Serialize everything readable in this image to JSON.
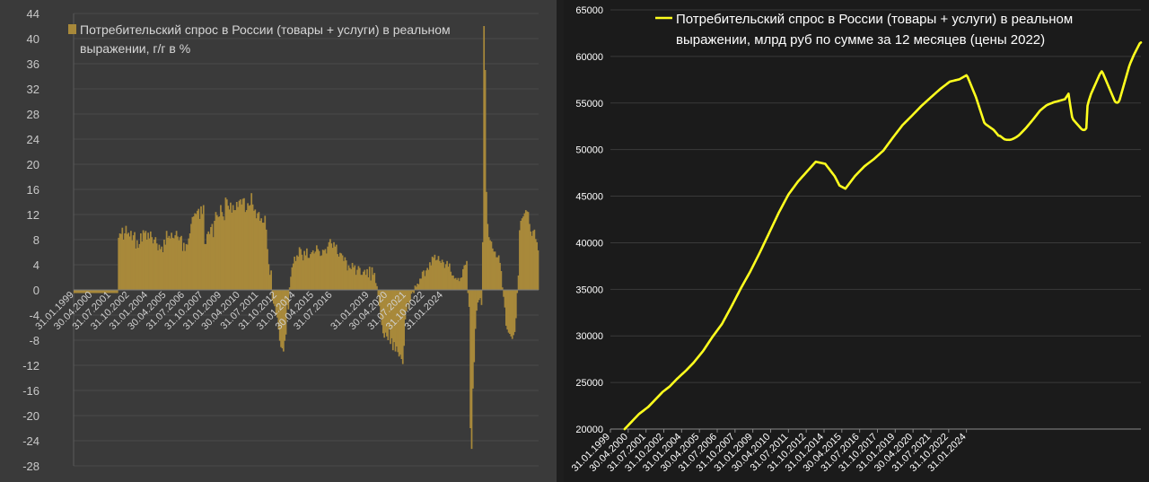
{
  "chart_data": [
    {
      "type": "bar",
      "legend": [
        "Потребительский спрос в России (товары + услуги) в реальном",
        "выражении, г/г в %"
      ],
      "color": "#a8893a",
      "ylim": [
        -28,
        44
      ],
      "yticks": [
        -28,
        -24,
        -20,
        -16,
        -12,
        -8,
        -4,
        0,
        4,
        8,
        12,
        16,
        20,
        24,
        28,
        32,
        36,
        40,
        44
      ],
      "grid": true,
      "xtick_labels": [
        "31.01.1999",
        "30.04.2000",
        "31.07.2001",
        "31.10.2002",
        "31.01.2004",
        "30.04.2005",
        "31.07.2006",
        "31.10.2007",
        "31.01.2009",
        "30.04.2010",
        "31.07.2011",
        "31.10.2012",
        "31.01.2014",
        "30.04.2015",
        "31.07.2016",
        "31.01.2019",
        "30.04.2020",
        "31.07.2021",
        "31.10.2022",
        "31.01.2024"
      ],
      "x_start": "1999-01",
      "frequency": "monthly",
      "values": [
        -0.5,
        -0.5,
        -0.5,
        -0.5,
        -0.5,
        -0.5,
        -0.5,
        -0.5,
        -0.5,
        -0.5,
        -0.5,
        -0.5,
        -0.5,
        -0.5,
        -0.5,
        -0.5,
        -0.5,
        -0.5,
        -0.5,
        -0.5,
        -0.5,
        -0.5,
        -0.5,
        -0.5,
        -0.5,
        -0.5,
        -0.5,
        -0.5,
        -0.5,
        -0.5,
        -0.5,
        -0.5,
        -0.5,
        -0.5,
        -0.5,
        -0.5,
        8.3,
        9.0,
        8.9,
        9.9,
        8.0,
        9.0,
        10.2,
        8.9,
        9.1,
        8.5,
        9.4,
        7.9,
        8.7,
        9.2,
        6.6,
        7.9,
        6.7,
        7.3,
        9.0,
        7.7,
        9.5,
        9.1,
        9.4,
        8.0,
        9.1,
        8.2,
        9.3,
        8.4,
        7.4,
        8.0,
        8.4,
        7.4,
        6.3,
        7.2,
        6.5,
        6.9,
        6.0,
        8.0,
        7.2,
        9.4,
        8.3,
        8.6,
        8.2,
        9.1,
        8.3,
        8.2,
        8.7,
        9.4,
        8.5,
        7.9,
        8.4,
        8.6,
        6.2,
        7.5,
        6.2,
        7.3,
        7.2,
        8.2,
        9.0,
        10.5,
        11.6,
        11.7,
        12.2,
        12.1,
        12.6,
        12.9,
        11.3,
        13.3,
        12.1,
        13.5,
        7.3,
        7.3,
        8.9,
        9.3,
        8.9,
        10.0,
        10.5,
        8.4,
        11.0,
        12.4,
        11.9,
        11.6,
        11.7,
        13.5,
        12.4,
        11.7,
        11.1,
        14.7,
        14.4,
        13.4,
        12.8,
        13.9,
        12.3,
        13.5,
        12.7,
        12.7,
        14.0,
        13.2,
        14.2,
        14.4,
        13.6,
        14.5,
        14.6,
        12.4,
        12.7,
        13.8,
        13.4,
        13.5,
        15.4,
        13.6,
        12.6,
        12.8,
        11.4,
        12.2,
        12.4,
        11.0,
        11.4,
        10.7,
        10.7,
        11.8,
        9.6,
        6.5,
        4.1,
        2.4,
        3.1,
        -1.7,
        -2.2,
        -2.6,
        -4.0,
        -4.4,
        -6.3,
        -8.1,
        -9.1,
        -9.3,
        -9.8,
        -8.1,
        -7.1,
        -2.4,
        -3.1,
        0.4,
        2.1,
        3.6,
        4.2,
        5.3,
        4.6,
        5.5,
        5.3,
        6.8,
        6.5,
        5.6,
        4.7,
        6.2,
        5.5,
        6.6,
        5.1,
        5.1,
        5.7,
        6.0,
        6.3,
        5.8,
        6.1,
        7.1,
        6.5,
        6.2,
        5.4,
        5.5,
        6.4,
        6.3,
        6.5,
        5.8,
        6.9,
        7.6,
        8.1,
        7.4,
        6.7,
        7.6,
        6.9,
        7.2,
        5.7,
        5.3,
        5.9,
        5.8,
        5.5,
        4.6,
        5.2,
        4.7,
        3.1,
        3.9,
        3.5,
        3.3,
        4.3,
        3.6,
        3.9,
        2.4,
        3.2,
        3.8,
        3.5,
        2.4,
        2.4,
        2.9,
        3.2,
        2.4,
        3.3,
        2.0,
        3.7,
        1.5,
        3.6,
        2.4,
        2.7,
        1.1,
        0.6,
        -1.0,
        -2.6,
        -4.6,
        -5.6,
        -6.9,
        -7.6,
        -6.8,
        -7.4,
        -8.0,
        -6.2,
        -8.6,
        -7.7,
        -9.6,
        -8.3,
        -9.8,
        -9.0,
        -9.9,
        -10.6,
        -10.3,
        -11.0,
        -11.8,
        -8.9,
        -4.7,
        -3.4,
        -2.0,
        -3.0,
        -1.8,
        -0.6,
        -0.3,
        -0.5,
        0.7,
        0.5,
        1.0,
        0.9,
        1.8,
        1.8,
        2.9,
        3.1,
        2.2,
        3.1,
        3.5,
        3.2,
        4.4,
        3.9,
        5.3,
        5.1,
        5.6,
        4.7,
        4.8,
        5.4,
        4.6,
        4.3,
        4.8,
        4.4,
        3.5,
        4.1,
        4.6,
        3.7,
        4.2,
        2.9,
        2.3,
        2.3,
        1.8,
        1.9,
        1.6,
        1.9,
        1.4,
        1.9,
        2.0,
        3.3,
        3.9,
        4.0,
        4.6,
        -0.5,
        -2.7,
        -22.0,
        -25.3,
        -15.7,
        -11.5,
        -6.2,
        -3.3,
        -2.0,
        -1.6,
        -1.3,
        -2.4,
        7.6,
        42.0,
        35.0,
        15.6,
        10.5,
        8.4,
        7.9,
        7.7,
        6.6,
        6.1,
        6.1,
        5.2,
        5.2,
        5.5,
        4.3,
        3.0,
        0.4,
        -1.1,
        -2.8,
        -5.7,
        -6.3,
        -6.8,
        -7.0,
        -7.4,
        -7.8,
        -7.2,
        -6.7,
        -4.5,
        -0.5,
        2.3,
        9.5,
        11.0,
        11.4,
        11.7,
        12.2,
        12.7,
        12.5,
        12.4,
        10.5,
        9.3,
        8.6,
        9.4,
        9.6,
        8.1,
        7.6,
        6.3
      ]
    },
    {
      "type": "line",
      "legend": [
        "Потребительский спрос в России (товары + услуги) в реальном",
        "выражении, млрд руб по сумме за 12 месяцев (цены 2022)"
      ],
      "color": "#ffff1e",
      "ylim": [
        20000,
        65000
      ],
      "yticks": [
        20000,
        25000,
        30000,
        35000,
        40000,
        45000,
        50000,
        55000,
        60000,
        65000
      ],
      "grid": true,
      "xtick_labels": [
        "31.01.1999",
        "30.04.2000",
        "31.07.2001",
        "31.10.2002",
        "31.01.2004",
        "30.04.2005",
        "31.07.2006",
        "31.10.2007",
        "31.01.2009",
        "30.04.2010",
        "31.07.2011",
        "31.10.2012",
        "31.01.2014",
        "30.04.2015",
        "31.07.2016",
        "31.10.2017",
        "31.01.2019",
        "30.04.2020",
        "31.07.2021",
        "31.10.2022",
        "31.01.2024"
      ],
      "x_start": "1999-01",
      "frequency": "monthly",
      "values": [
        null,
        null,
        null,
        null,
        null,
        null,
        null,
        null,
        null,
        null,
        null,
        null,
        20000,
        20134,
        20267,
        20401,
        20535,
        20668,
        20802,
        20936,
        21069,
        21203,
        21337,
        21470,
        21604,
        21702,
        21800,
        21898,
        21996,
        22094,
        22193,
        22291,
        22389,
        22522,
        22655,
        22788,
        22921,
        23054,
        23187,
        23319,
        23452,
        23585,
        23718,
        23851,
        23984,
        24082,
        24181,
        24279,
        24377,
        24475,
        24574,
        24707,
        24840,
        24973,
        25106,
        25239,
        25372,
        25490,
        25608,
        25726,
        25844,
        25962,
        26080,
        26198,
        26316,
        26448,
        26580,
        26713,
        26845,
        26978,
        27110,
        27267,
        27423,
        27580,
        27737,
        27893,
        28050,
        28207,
        28363,
        28555,
        28746,
        28938,
        29130,
        29321,
        29513,
        29705,
        29896,
        30069,
        30242,
        30415,
        30588,
        30761,
        30934,
        31107,
        31280,
        31515,
        31751,
        31986,
        32222,
        32457,
        32693,
        32928,
        33164,
        33409,
        33655,
        33900,
        34145,
        34391,
        34636,
        34882,
        35127,
        35355,
        35583,
        35811,
        36039,
        36267,
        36495,
        36723,
        36951,
        37204,
        37458,
        37711,
        37964,
        38218,
        38471,
        38724,
        38977,
        39245,
        39512,
        39779,
        40047,
        40314,
        40581,
        40849,
        41116,
        41385,
        41653,
        41922,
        42190,
        42459,
        42728,
        42996,
        43265,
        43504,
        43743,
        43982,
        44221,
        44460,
        44699,
        44939,
        45178,
        45351,
        45525,
        45698,
        45872,
        46045,
        46219,
        46392,
        46566,
        46707,
        46849,
        46991,
        47133,
        47275,
        47416,
        47558,
        47700,
        47843,
        47985,
        48127,
        48270,
        48412,
        48554,
        48697,
        48669,
        48640,
        48612,
        48584,
        48556,
        48527,
        48499,
        48471,
        48304,
        48138,
        47971,
        47804,
        47638,
        47471,
        47304,
        47138,
        46891,
        46643,
        46396,
        46149,
        46079,
        46009,
        45939,
        45869,
        45800,
        45969,
        46137,
        46306,
        46474,
        46643,
        46811,
        46980,
        47148,
        47280,
        47412,
        47544,
        47676,
        47808,
        47940,
        48072,
        48204,
        48302,
        48399,
        48496,
        48593,
        48690,
        48787,
        48884,
        48981,
        49096,
        49210,
        49325,
        49440,
        49554,
        49669,
        49784,
        49898,
        50071,
        50245,
        50418,
        50592,
        50765,
        50939,
        51112,
        51286,
        51451,
        51617,
        51783,
        51948,
        52114,
        52279,
        52445,
        52611,
        52738,
        52866,
        52993,
        53120,
        53248,
        53375,
        53503,
        53630,
        53761,
        53893,
        54024,
        54155,
        54287,
        54418,
        54550,
        54681,
        54797,
        54913,
        55029,
        55145,
        55261,
        55377,
        55493,
        55609,
        55722,
        55835,
        55948,
        56061,
        56174,
        56287,
        56401,
        56514,
        56612,
        56710,
        56809,
        56907,
        57005,
        57104,
        57202,
        57300,
        57331,
        57361,
        57392,
        57422,
        57453,
        57484,
        57514,
        57545,
        57617,
        57688,
        57760,
        57832,
        57904,
        57975,
        57799,
        57489,
        57178,
        56868,
        56557,
        56247,
        55937,
        55626,
        55236,
        54846,
        54456,
        54066,
        53676,
        53286,
        52896,
        52740,
        52650,
        52559,
        52469,
        52379,
        52288,
        52198,
        52108,
        51955,
        51802,
        51649,
        51496,
        51486,
        51400,
        51304,
        51200,
        51113,
        51075,
        51050,
        51051,
        51050,
        51061,
        51090,
        51142,
        51200,
        51270,
        51340,
        51430,
        51522,
        51639,
        51771,
        51903,
        52035,
        52167,
        52299,
        52451,
        52604,
        52756,
        52908,
        53060,
        53212,
        53375,
        53537,
        53700,
        53863,
        54025,
        54188,
        54293,
        54399,
        54504,
        54609,
        54714,
        54794,
        54845,
        54897,
        54948,
        54999,
        55051,
        55095,
        55130,
        55165,
        55201,
        55236,
        55271,
        55307,
        55342,
        55377,
        55412,
        55608,
        55804,
        56000,
        55100,
        54300,
        53500,
        53211,
        53067,
        52922,
        52778,
        52633,
        52489,
        52344,
        52200,
        52127,
        52100,
        52150,
        52300,
        54700,
        55200,
        55600,
        55988,
        56276,
        56563,
        56850,
        57138,
        57425,
        57712,
        58000,
        58228,
        58400,
        58200,
        57900,
        57600,
        57300,
        57000,
        56700,
        56400,
        56100,
        55800,
        55500,
        55200,
        55061,
        55035,
        55100,
        55330,
        55776,
        56221,
        56667,
        57113,
        57559,
        58004,
        58450,
        58896,
        59250,
        59550,
        59850,
        60150,
        60400,
        60650,
        60900,
        61150,
        61400,
        61500
      ]
    }
  ]
}
